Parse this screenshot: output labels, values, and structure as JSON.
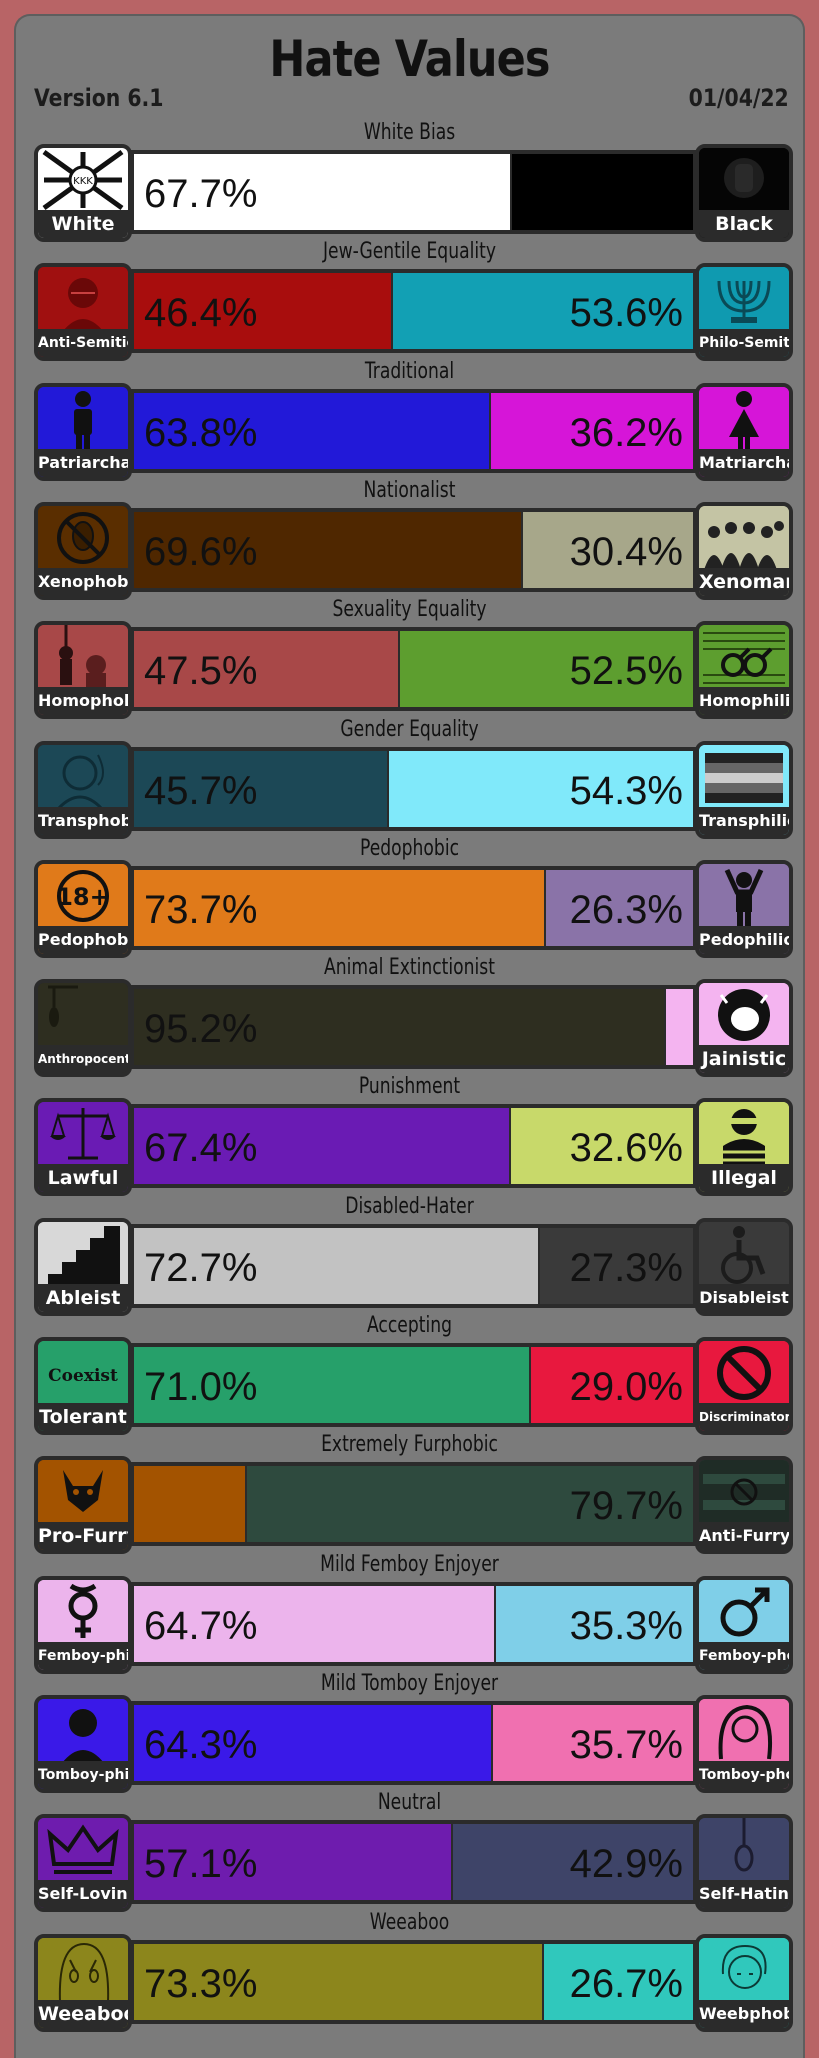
{
  "header": {
    "title": "Hate Values",
    "version": "Version 6.1",
    "date": "01/04/22"
  },
  "axes": [
    {
      "name": "White Bias",
      "left": {
        "label": "White",
        "value": 67.7,
        "text": "67.7%",
        "color": "#ffffff",
        "icon": "kkk-flag-icon"
      },
      "right": {
        "label": "Black",
        "value": 32.3,
        "text": "",
        "color": "#000000",
        "icon": "black-fist-icon"
      }
    },
    {
      "name": "Jew-Gentile Equality",
      "left": {
        "label": "Anti-Semitic",
        "value": 46.4,
        "text": "46.4%",
        "color": "#a80d0d",
        "icon": "anti-semitic-portrait-icon"
      },
      "right": {
        "label": "Philo-Semitic",
        "value": 53.6,
        "text": "53.6%",
        "color": "#12a0b4",
        "icon": "menorah-icon"
      }
    },
    {
      "name": "Traditional",
      "left": {
        "label": "Patriarchal",
        "value": 63.8,
        "text": "63.8%",
        "color": "#2219d8",
        "icon": "male-figure-icon"
      },
      "right": {
        "label": "Matriarchal",
        "value": 36.2,
        "text": "36.2%",
        "color": "#d615d8",
        "icon": "female-figure-icon"
      }
    },
    {
      "name": "Nationalist",
      "left": {
        "label": "Xenophobic",
        "value": 69.6,
        "text": "69.6%",
        "color": "#4f2700",
        "icon": "no-aliens-icon"
      },
      "right": {
        "label": "Xenomanic",
        "value": 30.4,
        "text": "30.4%",
        "color": "#a7a78a",
        "icon": "crowd-icon"
      }
    },
    {
      "name": "Sexuality Equality",
      "left": {
        "label": "Homophobic",
        "value": 47.5,
        "text": "47.5%",
        "color": "#a84848",
        "icon": "hanging-figure-icon"
      },
      "right": {
        "label": "Homophilic",
        "value": 52.5,
        "text": "52.5%",
        "color": "#5d9e2f",
        "icon": "male-symbols-flag-icon"
      }
    },
    {
      "name": "Gender Equality",
      "left": {
        "label": "Transphobic",
        "value": 45.7,
        "text": "45.7%",
        "color": "#1c4856",
        "icon": "transphobic-portrait-icon"
      },
      "right": {
        "label": "Transphilic",
        "value": 54.3,
        "text": "54.3%",
        "color": "#80e9fa",
        "icon": "striped-flag-icon"
      }
    },
    {
      "name": "Pedophobic",
      "left": {
        "label": "Pedophobic",
        "value": 73.7,
        "text": "73.7%",
        "color": "#e07a1a",
        "icon": "eighteen-plus-icon"
      },
      "right": {
        "label": "Pedophilic",
        "value": 26.3,
        "text": "26.3%",
        "color": "#8a73a8",
        "icon": "child-figure-icon"
      }
    },
    {
      "name": "Animal Extinctionist",
      "left": {
        "label": "Anthropocentric",
        "value": 95.2,
        "text": "95.2%",
        "color": "#2e2e20",
        "icon": "hanged-animal-icon"
      },
      "right": {
        "label": "Jainistic",
        "value": 4.8,
        "text": "",
        "color": "#f4b4f0",
        "icon": "cow-face-icon"
      }
    },
    {
      "name": "Punishment",
      "left": {
        "label": "Lawful",
        "value": 67.4,
        "text": "67.4%",
        "color": "#6a1bb4",
        "icon": "scales-icon"
      },
      "right": {
        "label": "Illegal",
        "value": 32.6,
        "text": "32.6%",
        "color": "#c8d96a",
        "icon": "robber-icon"
      }
    },
    {
      "name": "Disabled-Hater",
      "left": {
        "label": "Ableist",
        "value": 72.7,
        "text": "72.7%",
        "color": "#c2c2c2",
        "icon": "stairs-icon"
      },
      "right": {
        "label": "Disableist",
        "value": 27.3,
        "text": "27.3%",
        "color": "#3a3a3a",
        "icon": "wheelchair-icon"
      }
    },
    {
      "name": "Accepting",
      "left": {
        "label": "Tolerant",
        "value": 71.0,
        "text": "71.0%",
        "color": "#26a06a",
        "icon": "coexist-icon"
      },
      "right": {
        "label": "Discriminatory",
        "value": 29.0,
        "text": "29.0%",
        "color": "#e8183e",
        "icon": "prohibited-icon"
      }
    },
    {
      "name": "Extremely Furphobic",
      "left": {
        "label": "Pro-Furry",
        "value": 20.3,
        "text": "",
        "color": "#a35300",
        "icon": "fox-icon"
      },
      "right": {
        "label": "Anti-Furry",
        "value": 79.7,
        "text": "79.7%",
        "color": "#2e4a3e",
        "icon": "no-paw-flag-icon"
      }
    },
    {
      "name": "Mild Femboy Enjoyer",
      "left": {
        "label": "Femboy-philic",
        "value": 64.7,
        "text": "64.7%",
        "color": "#ecb4ec",
        "icon": "femboy-symbol-icon"
      },
      "right": {
        "label": "Femboy-phobic",
        "value": 35.3,
        "text": "35.3%",
        "color": "#7fcfe8",
        "icon": "male-symbol-icon"
      }
    },
    {
      "name": "Mild Tomboy Enjoyer",
      "left": {
        "label": "Tomboy-philic",
        "value": 64.3,
        "text": "64.3%",
        "color": "#3a19e8",
        "icon": "tomboy-portrait-icon"
      },
      "right": {
        "label": "Tomboy-phobic",
        "value": 35.7,
        "text": "35.7%",
        "color": "#f070b0",
        "icon": "long-hair-portrait-icon"
      }
    },
    {
      "name": "Neutral",
      "left": {
        "label": "Self-Loving",
        "value": 57.1,
        "text": "57.1%",
        "color": "#6e1cae",
        "icon": "crown-icon"
      },
      "right": {
        "label": "Self-Hating",
        "value": 42.9,
        "text": "42.9%",
        "color": "#3e4468",
        "icon": "noose-icon"
      }
    },
    {
      "name": "Weeaboo",
      "left": {
        "label": "Weeaboo",
        "value": 73.3,
        "text": "73.3%",
        "color": "#8c861c",
        "icon": "anime-girl-icon"
      },
      "right": {
        "label": "Weebphobic",
        "value": 26.7,
        "text": "26.7%",
        "color": "#30c8bc",
        "icon": "anime-boy-icon"
      }
    }
  ]
}
